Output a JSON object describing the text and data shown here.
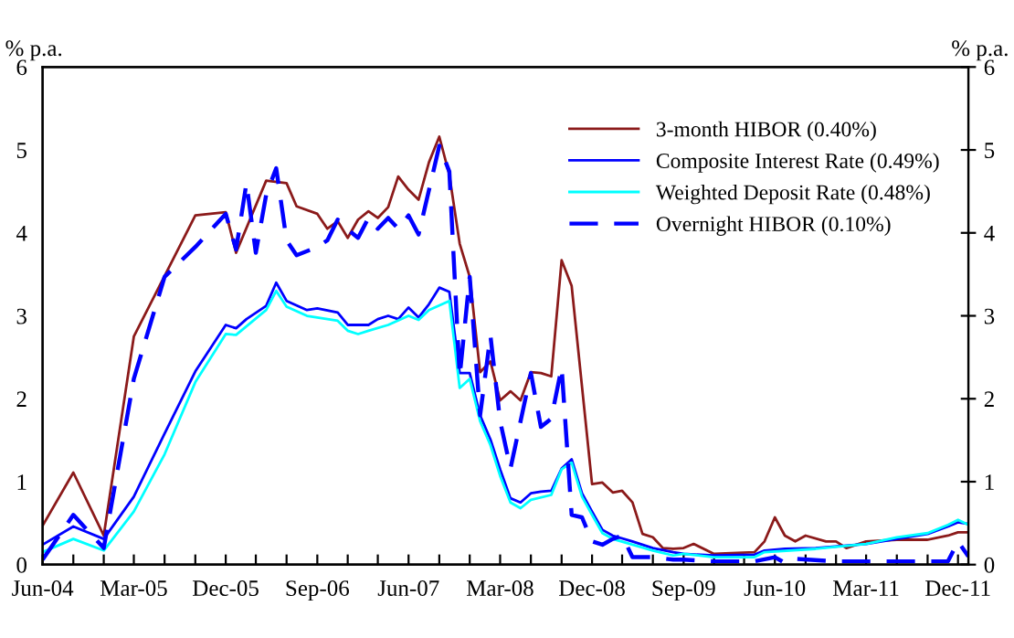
{
  "chart_data": {
    "type": "line",
    "ylabel": "% p.a.",
    "y2label": "% p.a.",
    "xlim": [
      "2004-06",
      "2012-01"
    ],
    "xticks": [
      {
        "value": "2004-06",
        "label": "Jun-04"
      },
      {
        "value": "2004-09",
        "label": null
      },
      {
        "value": "2004-12",
        "label": null
      },
      {
        "value": "2005-03",
        "label": "Mar-05"
      },
      {
        "value": "2005-06",
        "label": null
      },
      {
        "value": "2005-09",
        "label": null
      },
      {
        "value": "2005-12",
        "label": "Dec-05"
      },
      {
        "value": "2006-03",
        "label": null
      },
      {
        "value": "2006-06",
        "label": null
      },
      {
        "value": "2006-09",
        "label": "Sep-06"
      },
      {
        "value": "2006-12",
        "label": null
      },
      {
        "value": "2007-03",
        "label": null
      },
      {
        "value": "2007-06",
        "label": "Jun-07"
      },
      {
        "value": "2007-09",
        "label": null
      },
      {
        "value": "2007-12",
        "label": null
      },
      {
        "value": "2008-03",
        "label": "Mar-08"
      },
      {
        "value": "2008-06",
        "label": null
      },
      {
        "value": "2008-09",
        "label": null
      },
      {
        "value": "2008-12",
        "label": "Dec-08"
      },
      {
        "value": "2009-03",
        "label": null
      },
      {
        "value": "2009-06",
        "label": null
      },
      {
        "value": "2009-09",
        "label": "Sep-09"
      },
      {
        "value": "2009-12",
        "label": null
      },
      {
        "value": "2010-03",
        "label": null
      },
      {
        "value": "2010-06",
        "label": "Jun-10"
      },
      {
        "value": "2010-09",
        "label": null
      },
      {
        "value": "2010-12",
        "label": null
      },
      {
        "value": "2011-03",
        "label": "Mar-11"
      },
      {
        "value": "2011-06",
        "label": null
      },
      {
        "value": "2011-09",
        "label": null
      },
      {
        "value": "2011-12",
        "label": "Dec-11"
      }
    ],
    "ylim": [
      0,
      6
    ],
    "yticks": [
      0,
      1,
      2,
      3,
      4,
      5,
      6
    ],
    "y2lim": [
      0,
      6
    ],
    "y2ticks": [
      0,
      1,
      2,
      3,
      4,
      5,
      6
    ],
    "grid": false,
    "legend": "top right",
    "series": [
      {
        "name": "3-month HIBOR (0.40%)",
        "color": "#8b1a1a",
        "line_style": "solid",
        "x": [
          "2004-06",
          "2004-09",
          "2004-12",
          "2005-03",
          "2005-09",
          "2005-12",
          "2006-01",
          "2006-04",
          "2006-06",
          "2006-07",
          "2006-09",
          "2006-10",
          "2006-11",
          "2006-12",
          "2007-01",
          "2007-02",
          "2007-03",
          "2007-04",
          "2007-05",
          "2007-06",
          "2007-07",
          "2007-08",
          "2007-09",
          "2007-10",
          "2007-11",
          "2007-12",
          "2008-01",
          "2008-02",
          "2008-03",
          "2008-04",
          "2008-05",
          "2008-06",
          "2008-07",
          "2008-08",
          "2008-09",
          "2008-10",
          "2008-12",
          "2009-01",
          "2009-02",
          "2009-03",
          "2009-04",
          "2009-05",
          "2009-06",
          "2009-07",
          "2009-08",
          "2009-09",
          "2009-10",
          "2009-12",
          "2010-04",
          "2010-05",
          "2010-06",
          "2010-07",
          "2010-08",
          "2010-09",
          "2010-11",
          "2010-12",
          "2011-01",
          "2011-03",
          "2011-06",
          "2011-09",
          "2011-11",
          "2011-12",
          "2012-01"
        ],
        "values": [
          0.47,
          1.11,
          0.35,
          2.75,
          4.21,
          4.25,
          3.76,
          4.63,
          4.6,
          4.32,
          4.23,
          4.05,
          4.14,
          3.94,
          4.16,
          4.26,
          4.18,
          4.31,
          4.68,
          4.52,
          4.4,
          4.85,
          5.16,
          4.7,
          3.87,
          3.47,
          2.32,
          2.45,
          1.98,
          2.09,
          1.98,
          2.32,
          2.31,
          2.27,
          3.67,
          3.36,
          0.97,
          0.99,
          0.87,
          0.89,
          0.75,
          0.37,
          0.33,
          0.2,
          0.19,
          0.2,
          0.25,
          0.13,
          0.15,
          0.28,
          0.57,
          0.35,
          0.28,
          0.35,
          0.28,
          0.28,
          0.2,
          0.28,
          0.3,
          0.3,
          0.35,
          0.39,
          0.39
        ]
      },
      {
        "name": "Composite Interest Rate (0.49%)",
        "color": "#0000ff",
        "line_style": "solid",
        "x": [
          "2004-06",
          "2004-09",
          "2004-12",
          "2005-03",
          "2005-06",
          "2005-09",
          "2005-12",
          "2006-01",
          "2006-02",
          "2006-04",
          "2006-05",
          "2006-06",
          "2006-08",
          "2006-09",
          "2006-11",
          "2006-12",
          "2007-01",
          "2007-02",
          "2007-03",
          "2007-04",
          "2007-05",
          "2007-06",
          "2007-07",
          "2007-08",
          "2007-09",
          "2007-10",
          "2007-11",
          "2007-12",
          "2008-01",
          "2008-02",
          "2008-03",
          "2008-04",
          "2008-05",
          "2008-06",
          "2008-07",
          "2008-08",
          "2008-09",
          "2008-10",
          "2008-11",
          "2008-12",
          "2009-01",
          "2009-02",
          "2009-04",
          "2009-06",
          "2009-08",
          "2009-09",
          "2009-12",
          "2010-04",
          "2010-05",
          "2010-07",
          "2010-10",
          "2011-01",
          "2011-03",
          "2011-06",
          "2011-09",
          "2011-11",
          "2011-12",
          "2012-01"
        ],
        "values": [
          0.24,
          0.46,
          0.31,
          0.82,
          1.58,
          2.33,
          2.89,
          2.85,
          2.96,
          3.12,
          3.4,
          3.18,
          3.07,
          3.09,
          3.04,
          2.89,
          2.89,
          2.89,
          2.96,
          3.0,
          2.96,
          3.1,
          2.98,
          3.14,
          3.34,
          3.29,
          2.31,
          2.31,
          1.8,
          1.51,
          1.15,
          0.8,
          0.75,
          0.86,
          0.88,
          0.89,
          1.16,
          1.27,
          0.86,
          0.64,
          0.42,
          0.35,
          0.28,
          0.2,
          0.15,
          0.13,
          0.11,
          0.12,
          0.17,
          0.19,
          0.2,
          0.23,
          0.25,
          0.31,
          0.37,
          0.46,
          0.51,
          0.49
        ]
      },
      {
        "name": "Weighted Deposit Rate (0.48%)",
        "color": "#00ffff",
        "line_style": "solid",
        "x": [
          "2004-06",
          "2004-09",
          "2004-12",
          "2005-03",
          "2005-06",
          "2005-09",
          "2005-12",
          "2006-01",
          "2006-04",
          "2006-05",
          "2006-06",
          "2006-08",
          "2006-09",
          "2006-11",
          "2006-12",
          "2007-01",
          "2007-02",
          "2007-04",
          "2007-06",
          "2007-07",
          "2007-08",
          "2007-10",
          "2007-11",
          "2007-12",
          "2008-01",
          "2008-02",
          "2008-03",
          "2008-04",
          "2008-05",
          "2008-06",
          "2008-08",
          "2008-09",
          "2008-10",
          "2008-11",
          "2008-12",
          "2009-01",
          "2009-02",
          "2009-04",
          "2009-06",
          "2009-08",
          "2009-09",
          "2009-12",
          "2010-04",
          "2010-05",
          "2010-10",
          "2011-03",
          "2011-06",
          "2011-09",
          "2011-11",
          "2011-12",
          "2012-01"
        ],
        "values": [
          0.15,
          0.31,
          0.17,
          0.64,
          1.33,
          2.2,
          2.78,
          2.77,
          3.07,
          3.3,
          3.11,
          3.0,
          2.98,
          2.94,
          2.82,
          2.78,
          2.82,
          2.89,
          3.0,
          2.95,
          3.07,
          3.18,
          2.13,
          2.24,
          1.73,
          1.44,
          1.07,
          0.75,
          0.68,
          0.78,
          0.84,
          1.15,
          1.23,
          0.82,
          0.6,
          0.38,
          0.31,
          0.24,
          0.17,
          0.11,
          0.13,
          0.09,
          0.09,
          0.15,
          0.19,
          0.25,
          0.33,
          0.38,
          0.48,
          0.54,
          0.48
        ]
      },
      {
        "name": "Overnight HIBOR (0.10%)",
        "color": "#0000ff",
        "line_style": "dashed",
        "x": [
          "2004-06",
          "2004-09",
          "2004-12",
          "2005-03",
          "2005-06",
          "2005-09",
          "2005-12",
          "2006-01",
          "2006-02",
          "2006-03",
          "2006-04",
          "2006-05",
          "2006-06",
          "2006-07",
          "2006-09",
          "2006-10",
          "2006-11",
          "2006-12",
          "2007-01",
          "2007-02",
          "2007-03",
          "2007-04",
          "2007-05",
          "2007-06",
          "2007-07",
          "2007-09",
          "2007-10",
          "2007-11",
          "2007-12",
          "2008-01",
          "2008-02",
          "2008-03",
          "2008-04",
          "2008-06",
          "2008-07",
          "2008-08",
          "2008-09",
          "2008-10",
          "2008-11",
          "2008-12",
          "2009-01",
          "2009-02",
          "2009-03",
          "2009-04",
          "2009-06",
          "2009-08",
          "2009-09",
          "2009-12",
          "2010-04",
          "2010-06",
          "2010-07",
          "2010-08",
          "2010-12",
          "2011-11",
          "2011-12",
          "2012-01"
        ],
        "values": [
          0.06,
          0.6,
          0.2,
          2.24,
          3.47,
          3.83,
          4.23,
          3.8,
          4.6,
          3.76,
          4.46,
          4.78,
          3.91,
          3.73,
          3.83,
          3.91,
          4.16,
          4.04,
          3.94,
          4.18,
          4.05,
          4.18,
          4.05,
          4.21,
          3.98,
          5.05,
          4.74,
          2.27,
          3.47,
          1.8,
          2.76,
          1.73,
          1.16,
          2.31,
          1.66,
          1.76,
          2.38,
          0.6,
          0.57,
          0.28,
          0.24,
          0.31,
          0.35,
          0.09,
          0.09,
          0.06,
          0.06,
          0.04,
          0.04,
          0.09,
          0.02,
          0.07,
          0.04,
          0.04,
          0.28,
          0.1
        ]
      }
    ]
  }
}
